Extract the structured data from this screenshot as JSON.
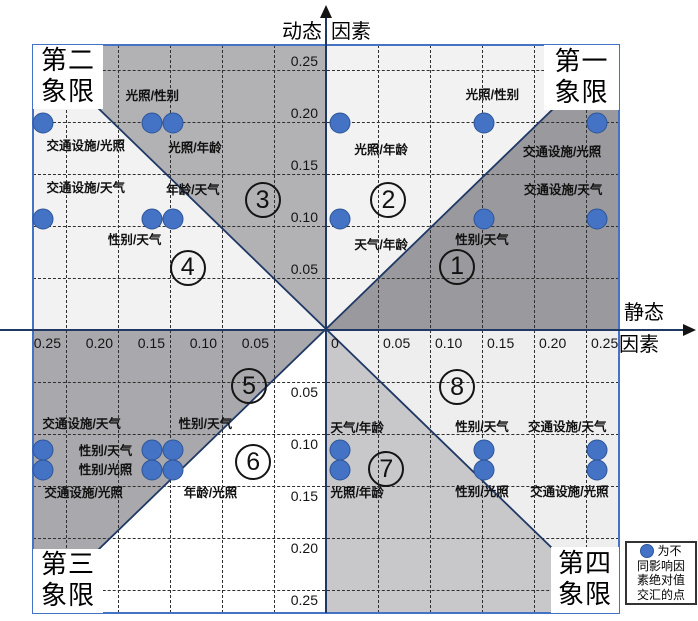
{
  "axes": {
    "y_axis_title": "动态因素",
    "y_title_left": "动态",
    "y_title_right": "因素",
    "x_axis_title": "静态因素",
    "x_title_top": "静态",
    "x_title_bottom": "因素",
    "zero_label": "0",
    "x_ticks_negative": [
      "0.25",
      "0.20",
      "0.15",
      "0.10",
      "0.05"
    ],
    "x_ticks_positive": [
      "0.05",
      "0.10",
      "0.15",
      "0.20",
      "0.25"
    ],
    "y_ticks_positive": [
      "0.25",
      "0.20",
      "0.15",
      "0.10",
      "0.05"
    ],
    "y_ticks_negative": [
      "0.05",
      "0.10",
      "0.15",
      "0.20",
      "0.25"
    ]
  },
  "quadrants": [
    {
      "id": "q1",
      "lines": [
        "第一",
        "象限"
      ]
    },
    {
      "id": "q2",
      "lines": [
        "第二",
        "象限"
      ]
    },
    {
      "id": "q3",
      "lines": [
        "第三",
        "象限"
      ]
    },
    {
      "id": "q4",
      "lines": [
        "第四",
        "象限"
      ]
    }
  ],
  "legend": {
    "full_text": "为不同影响因素绝对值交汇的点",
    "lines": [
      "为不",
      "同影响因",
      "素绝对值",
      "交汇的点"
    ]
  },
  "colors": {
    "dot_fill": "#4472c4",
    "dot_stroke": "#2e5597",
    "axis": "#1f3864",
    "diagonal": "#1f3864",
    "plot_border": "#4472c4",
    "grid": "#2f2f2f",
    "arrow": "#141414"
  },
  "chart_data": {
    "type": "scatter",
    "xlabel": "静态因素",
    "ylabel": "动态因素",
    "xlim": [
      -0.28,
      0.28
    ],
    "ylim": [
      -0.27,
      0.27
    ],
    "grid": "dashed, every 0.05 in both directions",
    "tick_values": [
      0.05,
      0.1,
      0.15,
      0.2,
      0.25
    ],
    "legend_position": "bottom-right outside plot",
    "regions": [
      {
        "number": "1",
        "x": 0.126,
        "y": 0.061,
        "color": "#9a9a9e"
      },
      {
        "number": "2",
        "x": 0.06,
        "y": 0.125,
        "color": "#f2f2f3"
      },
      {
        "number": "3",
        "x": -0.061,
        "y": 0.125,
        "color": "#b2b2b5"
      },
      {
        "number": "4",
        "x": -0.133,
        "y": 0.06,
        "color": "#f2f2f3"
      },
      {
        "number": "5",
        "x": -0.074,
        "y": -0.054,
        "color": "#a9a9ad"
      },
      {
        "number": "6",
        "x": -0.07,
        "y": -0.127,
        "color": "#ffffff"
      },
      {
        "number": "7",
        "x": 0.058,
        "y": -0.134,
        "color": "#c8c8cb"
      },
      {
        "number": "8",
        "x": 0.126,
        "y": -0.055,
        "color": "#eeeeef"
      }
    ],
    "points": [
      {
        "x": -0.272,
        "y": 0.199
      },
      {
        "x": -0.167,
        "y": 0.199
      },
      {
        "x": -0.147,
        "y": 0.199
      },
      {
        "x": -0.272,
        "y": 0.107
      },
      {
        "x": -0.167,
        "y": 0.107
      },
      {
        "x": -0.147,
        "y": 0.107
      },
      {
        "x": 0.013,
        "y": 0.199
      },
      {
        "x": 0.152,
        "y": 0.199
      },
      {
        "x": 0.261,
        "y": 0.199
      },
      {
        "x": 0.013,
        "y": 0.107
      },
      {
        "x": 0.152,
        "y": 0.107
      },
      {
        "x": 0.261,
        "y": 0.107
      },
      {
        "x": -0.272,
        "y": -0.115
      },
      {
        "x": -0.272,
        "y": -0.135
      },
      {
        "x": -0.167,
        "y": -0.115
      },
      {
        "x": -0.147,
        "y": -0.115
      },
      {
        "x": -0.167,
        "y": -0.135
      },
      {
        "x": -0.147,
        "y": -0.135
      },
      {
        "x": 0.013,
        "y": -0.115
      },
      {
        "x": 0.013,
        "y": -0.135
      },
      {
        "x": 0.152,
        "y": -0.115
      },
      {
        "x": 0.152,
        "y": -0.135
      },
      {
        "x": 0.261,
        "y": -0.115
      },
      {
        "x": 0.261,
        "y": -0.135
      }
    ],
    "point_labels": [
      {
        "text": "光照/性别",
        "x": -0.167,
        "y": 0.225
      },
      {
        "text": "交通设施/光照",
        "x": -0.231,
        "y": 0.177
      },
      {
        "text": "光照/年龄",
        "x": -0.126,
        "y": 0.175
      },
      {
        "text": "交通设施/天气",
        "x": -0.231,
        "y": 0.137
      },
      {
        "text": "年龄/天气",
        "x": -0.128,
        "y": 0.135
      },
      {
        "text": "性别/天气",
        "x": -0.184,
        "y": 0.087
      },
      {
        "text": "光照/性别",
        "x": 0.16,
        "y": 0.226
      },
      {
        "text": "光照/年龄",
        "x": 0.053,
        "y": 0.173
      },
      {
        "text": "交通设施/光照",
        "x": 0.227,
        "y": 0.171
      },
      {
        "text": "交通设施/天气",
        "x": 0.228,
        "y": 0.135
      },
      {
        "text": "天气/年龄",
        "x": 0.053,
        "y": 0.082
      },
      {
        "text": "性别/天气",
        "x": 0.15,
        "y": 0.087
      },
      {
        "text": "交通设施/天气",
        "x": -0.235,
        "y": -0.09
      },
      {
        "text": "性别/天气",
        "x": -0.212,
        "y": -0.116
      },
      {
        "text": "性别/光照",
        "x": -0.212,
        "y": -0.135
      },
      {
        "text": "交通设施/光照",
        "x": -0.233,
        "y": -0.157
      },
      {
        "text": "性别/天气",
        "x": -0.116,
        "y": -0.09
      },
      {
        "text": "年龄/光照",
        "x": -0.111,
        "y": -0.157
      },
      {
        "text": "天气/年龄",
        "x": 0.03,
        "y": -0.094
      },
      {
        "text": "性别/天气",
        "x": 0.15,
        "y": -0.093
      },
      {
        "text": "交通设施/天气",
        "x": 0.232,
        "y": -0.093
      },
      {
        "text": "光照/年龄",
        "x": 0.03,
        "y": -0.157
      },
      {
        "text": "性别/光照",
        "x": 0.15,
        "y": -0.156
      },
      {
        "text": "交通设施/光照",
        "x": 0.234,
        "y": -0.156
      }
    ]
  }
}
